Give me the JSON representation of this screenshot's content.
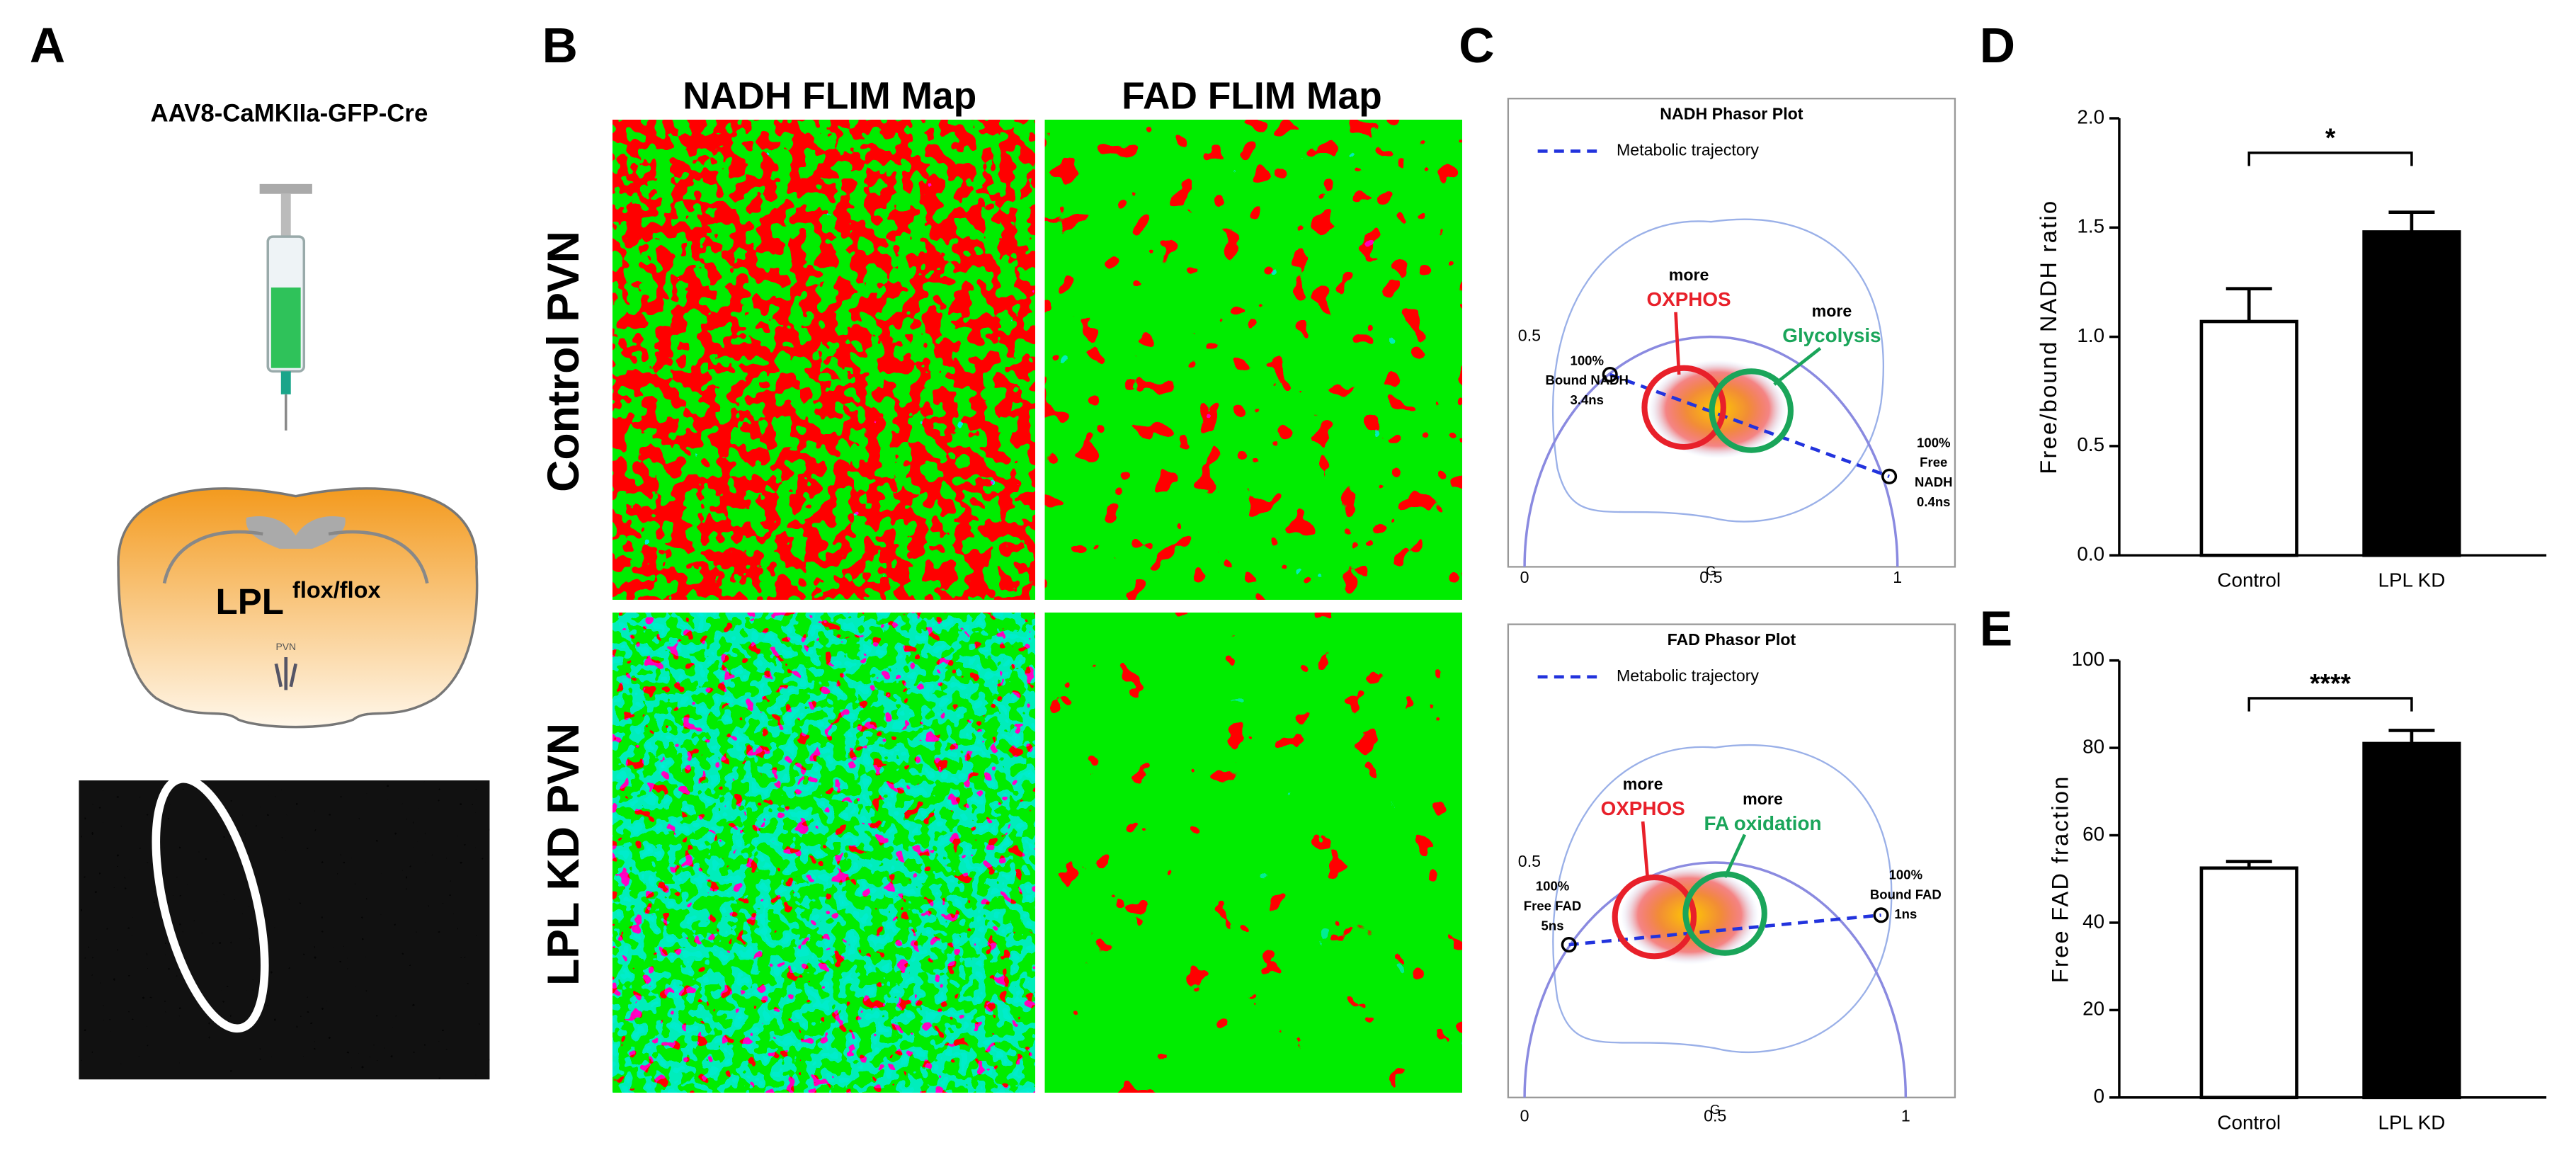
{
  "panel_a": {
    "label": "A",
    "title": "AAV8-CaMKIIa-GFP-Cre",
    "brain_label": "LPL",
    "brain_superscript": "flox/flox",
    "region": "PVN"
  },
  "panel_b": {
    "label": "B",
    "columns": [
      "NADH FLIM Map",
      "FAD FLIM Map"
    ],
    "rows": [
      "Control PVN",
      "LPL KD PVN"
    ]
  },
  "panel_c": {
    "label": "C",
    "plots": [
      {
        "title": "NADH Phasor Plot",
        "legend": "Metabolic trajectory",
        "x_label": "G",
        "xticks": [
          0,
          0.5,
          1
        ],
        "yticks": [
          0.5
        ],
        "annotations": [
          {
            "lines": [
              "more",
              "OXPHOS"
            ],
            "color": "#e8202a"
          },
          {
            "lines": [
              "more",
              "Glycolysis"
            ],
            "color": "#1aa55a"
          },
          {
            "lines": [
              "100%",
              "Bound NADH",
              "3.4ns"
            ]
          },
          {
            "lines": [
              "100%",
              "Free",
              "NADH",
              "0.4ns"
            ]
          }
        ]
      },
      {
        "title": "FAD Phasor Plot",
        "legend": "Metabolic trajectory",
        "x_label": "G",
        "xticks": [
          0,
          0.5,
          1
        ],
        "yticks": [
          0.5
        ],
        "annotations": [
          {
            "lines": [
              "more",
              "OXPHOS"
            ],
            "color": "#e8202a"
          },
          {
            "lines": [
              "more",
              "FA oxidation"
            ],
            "color": "#1aa55a"
          },
          {
            "lines": [
              "100%",
              "Free FAD",
              "5ns"
            ]
          },
          {
            "lines": [
              "100%",
              "Bound FAD",
              "1ns"
            ]
          }
        ]
      }
    ]
  },
  "chart_data": [
    {
      "type": "bar",
      "panel": "D",
      "y_label": "Free/bound NADH ratio",
      "categories": [
        "Control",
        "LPL KD"
      ],
      "values": [
        1.07,
        1.48
      ],
      "errors": [
        0.15,
        0.09
      ],
      "colors": [
        "#ffffff",
        "#000000"
      ],
      "ylim": [
        0,
        2
      ],
      "yticks": [
        {
          "value": 0,
          "label": "0.0"
        },
        {
          "value": 0.5,
          "label": "0.5"
        },
        {
          "value": 1,
          "label": "1.0"
        },
        {
          "value": 1.5,
          "label": "1.5"
        },
        {
          "value": 2,
          "label": "2.0"
        }
      ],
      "significance": "*"
    },
    {
      "type": "bar",
      "panel": "E",
      "y_label": "Free FAD fraction",
      "categories": [
        "Control",
        "LPL KD"
      ],
      "values": [
        52.5,
        81
      ],
      "errors": [
        1.5,
        3
      ],
      "colors": [
        "#ffffff",
        "#000000"
      ],
      "ylim": [
        0,
        100
      ],
      "yticks": [
        0,
        20,
        40,
        60,
        80,
        100
      ],
      "significance": "****"
    }
  ]
}
